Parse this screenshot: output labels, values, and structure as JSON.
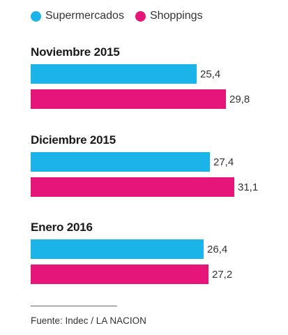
{
  "chart_data": {
    "type": "bar",
    "orientation": "horizontal",
    "categories": [
      "Noviembre 2015",
      "Diciembre 2015",
      "Enero 2016"
    ],
    "series": [
      {
        "name": "Supermercados",
        "color": "#1ab4e8",
        "values": [
          25.4,
          27.4,
          26.4
        ],
        "labels": [
          "25,4",
          "27,4",
          "26,4"
        ]
      },
      {
        "name": "Shoppings",
        "color": "#e5157a",
        "values": [
          29.8,
          31.1,
          27.2
        ],
        "labels": [
          "29,8",
          "31,1",
          "27,2"
        ]
      }
    ],
    "xlim": [
      0,
      31.1
    ],
    "legend": "top-left",
    "grid": false
  },
  "source": "Fuente: Indec / LA NACION"
}
